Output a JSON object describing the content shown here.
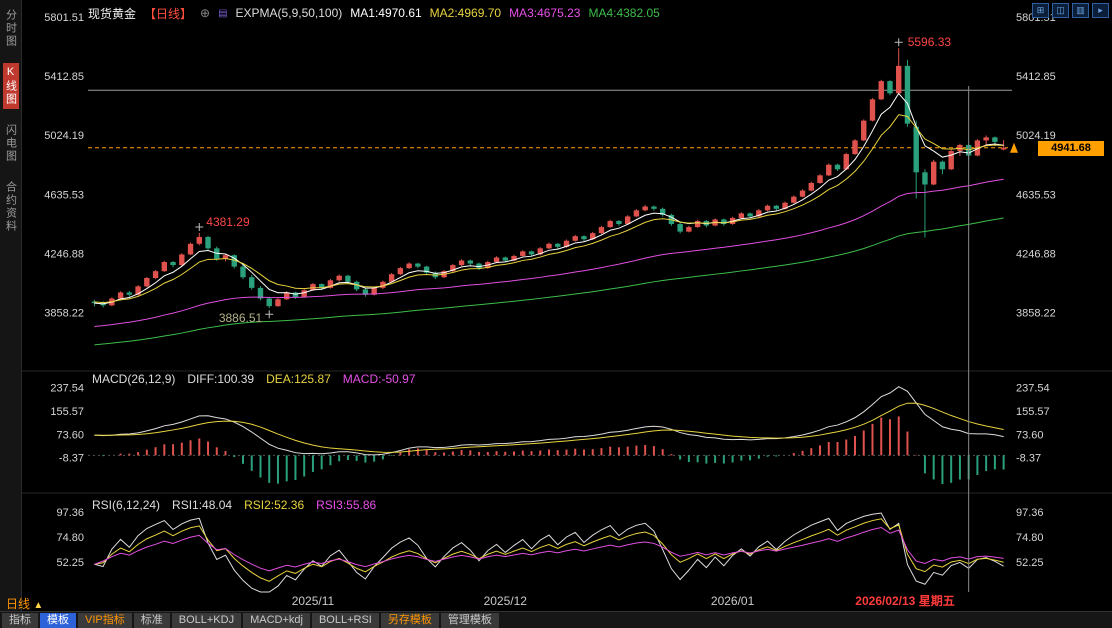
{
  "header": {
    "symbol": "现货黄金",
    "period": "【日线】",
    "add_icon": "⊕",
    "menu_icon": "▤",
    "indicator": "EXPMA(5,9,50,100)",
    "ma1": "MA1:4970.61",
    "ma2": "MA2:4969.70",
    "ma3": "MA3:4675.23",
    "ma4": "MA4:4382.05",
    "icons": [
      {
        "name": "grid-layout-icon",
        "glyph": "⊞"
      },
      {
        "name": "dual-panel-icon",
        "glyph": "◫"
      },
      {
        "name": "list-panel-icon",
        "glyph": "▥"
      },
      {
        "name": "next-page-icon",
        "glyph": "▸"
      }
    ]
  },
  "sidebar": {
    "items": [
      {
        "label": "分时图",
        "active": false
      },
      {
        "label": "K线图",
        "active": true
      },
      {
        "label": "闪电图",
        "active": false
      },
      {
        "label": "合约资料",
        "active": false
      }
    ]
  },
  "macd_header": {
    "title": "MACD(26,12,9)",
    "diff": "DIFF:100.39",
    "dea": "DEA:125.87",
    "macd": "MACD:-50.97"
  },
  "rsi_header": {
    "title": "RSI(6,12,24)",
    "rsi1": "RSI1:48.04",
    "rsi2": "RSI2:52.36",
    "rsi3": "RSI3:55.86"
  },
  "bottom": {
    "period_label": "日线",
    "period_arrow": "▲",
    "tabs": [
      {
        "label": "指标"
      },
      {
        "label": "模板"
      },
      {
        "label": "VIP指标"
      },
      {
        "label": "标准"
      },
      {
        "label": "BOLL+KDJ"
      },
      {
        "label": "MACD+kdj"
      },
      {
        "label": "BOLL+RSI"
      },
      {
        "label": "另存模板"
      },
      {
        "label": "管理模板"
      }
    ]
  },
  "chart_data": {
    "type": "candlestick",
    "title": "现货黄金 日线",
    "y_axis_labels": [
      5801.51,
      5412.85,
      5024.19,
      4635.53,
      4246.88,
      3858.22
    ],
    "price_range": {
      "max": 5801.51,
      "min": 3480
    },
    "x_labels": [
      {
        "index": 25,
        "text": "2025/11"
      },
      {
        "index": 47,
        "text": "2025/12"
      },
      {
        "index": 73,
        "text": "2026/01"
      }
    ],
    "crosshair": {
      "index": 100,
      "date_label": "2026/02/13 星期五"
    },
    "current_price": {
      "value": 4941.68,
      "label": "4941.68"
    },
    "ref_line_price": 5320,
    "annotations": {
      "high": {
        "index": 92,
        "price": 5596.33,
        "text": "5596.33"
      },
      "local_high": {
        "index": 12,
        "price": 4381.29,
        "text": "4381.29"
      },
      "local_low": {
        "index": 20,
        "price": 3886.51,
        "text": "3886.51"
      }
    },
    "expma": {
      "label": "EXPMA(5,9,50,100)",
      "periods": [
        5,
        9,
        50,
        100
      ],
      "seeds": [
        3920,
        3930,
        3760,
        3640
      ],
      "colors": [
        "#ffffff",
        "#e8d33f",
        "#e04fe0",
        "#3dbd4a"
      ],
      "values": [
        4970.61,
        4969.7,
        4675.23,
        4382.05
      ]
    },
    "macd": {
      "label": "MACD(26,12,9)",
      "diff": 100.39,
      "dea": 125.87,
      "macd": -50.97,
      "y_labels": [
        237.54,
        155.57,
        73.6,
        -8.37
      ],
      "range": {
        "min": -100,
        "max": 270
      },
      "seeds": [
        3850,
        3780
      ]
    },
    "rsi": {
      "label": "RSI(6,12,24)",
      "rsi1": 48.04,
      "rsi2": 52.36,
      "rsi3": 55.86,
      "y_labels": [
        97.36,
        74.8,
        52.25
      ],
      "range": {
        "min": 25,
        "max": 108
      }
    },
    "colors": {
      "up": "#e0524d",
      "down": "#2aa07c",
      "current_price": "#ff9f00",
      "crosshair": "#8a8a8a",
      "annotation_red": "#ff4545",
      "axis_text": "#d5d5d5"
    },
    "candles": [
      [
        3930,
        3942,
        3898,
        3920
      ],
      [
        3920,
        3932,
        3892,
        3905
      ],
      [
        3905,
        3958,
        3900,
        3950
      ],
      [
        3950,
        3998,
        3944,
        3990
      ],
      [
        3990,
        3999,
        3962,
        3975
      ],
      [
        3975,
        4038,
        3970,
        4030
      ],
      [
        4030,
        4092,
        4024,
        4085
      ],
      [
        4085,
        4138,
        4078,
        4130
      ],
      [
        4130,
        4198,
        4125,
        4190
      ],
      [
        4190,
        4196,
        4155,
        4170
      ],
      [
        4170,
        4248,
        4165,
        4240
      ],
      [
        4240,
        4318,
        4235,
        4310
      ],
      [
        4310,
        4381.29,
        4300,
        4355
      ],
      [
        4355,
        4362,
        4268,
        4280
      ],
      [
        4280,
        4292,
        4198,
        4210
      ],
      [
        4210,
        4245,
        4195,
        4235
      ],
      [
        4235,
        4240,
        4148,
        4160
      ],
      [
        4160,
        4172,
        4078,
        4090
      ],
      [
        4090,
        4105,
        4008,
        4020
      ],
      [
        4020,
        4032,
        3938,
        3950
      ],
      [
        3950,
        3962,
        3886.51,
        3900
      ],
      [
        3900,
        3952,
        3895,
        3945
      ],
      [
        3945,
        3998,
        3940,
        3990
      ],
      [
        3990,
        3995,
        3948,
        3960
      ],
      [
        3960,
        4012,
        3955,
        4005
      ],
      [
        4005,
        4052,
        4000,
        4045
      ],
      [
        4045,
        4050,
        4008,
        4020
      ],
      [
        4020,
        4078,
        4015,
        4070
      ],
      [
        4070,
        4108,
        4062,
        4100
      ],
      [
        4100,
        4106,
        4048,
        4060
      ],
      [
        4060,
        4068,
        3998,
        4010
      ],
      [
        4010,
        4022,
        3962,
        3975
      ],
      [
        3975,
        4028,
        3970,
        4020
      ],
      [
        4020,
        4068,
        4012,
        4060
      ],
      [
        4060,
        4118,
        4055,
        4110
      ],
      [
        4110,
        4158,
        4104,
        4150
      ],
      [
        4150,
        4188,
        4144,
        4180
      ],
      [
        4180,
        4185,
        4148,
        4160
      ],
      [
        4160,
        4166,
        4108,
        4120
      ],
      [
        4120,
        4128,
        4078,
        4090
      ],
      [
        4090,
        4138,
        4085,
        4130
      ],
      [
        4130,
        4178,
        4125,
        4170
      ],
      [
        4170,
        4208,
        4164,
        4200
      ],
      [
        4200,
        4206,
        4168,
        4180
      ],
      [
        4180,
        4186,
        4138,
        4150
      ],
      [
        4150,
        4198,
        4145,
        4190
      ],
      [
        4190,
        4228,
        4185,
        4220
      ],
      [
        4220,
        4226,
        4188,
        4200
      ],
      [
        4200,
        4238,
        4195,
        4230
      ],
      [
        4230,
        4268,
        4225,
        4260
      ],
      [
        4260,
        4265,
        4228,
        4240
      ],
      [
        4240,
        4288,
        4235,
        4280
      ],
      [
        4280,
        4318,
        4275,
        4310
      ],
      [
        4310,
        4315,
        4278,
        4290
      ],
      [
        4290,
        4338,
        4285,
        4330
      ],
      [
        4330,
        4368,
        4325,
        4360
      ],
      [
        4360,
        4366,
        4328,
        4340
      ],
      [
        4340,
        4388,
        4335,
        4380
      ],
      [
        4380,
        4428,
        4375,
        4420
      ],
      [
        4420,
        4468,
        4415,
        4460
      ],
      [
        4460,
        4466,
        4428,
        4440
      ],
      [
        4440,
        4498,
        4435,
        4490
      ],
      [
        4490,
        4538,
        4485,
        4530
      ],
      [
        4530,
        4565,
        4524,
        4555
      ],
      [
        4555,
        4562,
        4528,
        4540
      ],
      [
        4540,
        4548,
        4488,
        4500
      ],
      [
        4500,
        4508,
        4428,
        4440
      ],
      [
        4440,
        4452,
        4378,
        4390
      ],
      [
        4390,
        4428,
        4385,
        4420
      ],
      [
        4420,
        4468,
        4415,
        4460
      ],
      [
        4460,
        4466,
        4418,
        4430
      ],
      [
        4430,
        4478,
        4425,
        4470
      ],
      [
        4470,
        4476,
        4428,
        4440
      ],
      [
        4440,
        4488,
        4435,
        4480
      ],
      [
        4480,
        4518,
        4475,
        4510
      ],
      [
        4510,
        4516,
        4478,
        4490
      ],
      [
        4490,
        4538,
        4485,
        4530
      ],
      [
        4530,
        4568,
        4525,
        4560
      ],
      [
        4560,
        4566,
        4528,
        4540
      ],
      [
        4540,
        4588,
        4535,
        4580
      ],
      [
        4580,
        4628,
        4575,
        4620
      ],
      [
        4620,
        4668,
        4615,
        4660
      ],
      [
        4660,
        4718,
        4655,
        4710
      ],
      [
        4710,
        4768,
        4705,
        4760
      ],
      [
        4760,
        4838,
        4755,
        4830
      ],
      [
        4830,
        4836,
        4788,
        4800
      ],
      [
        4800,
        4908,
        4795,
        4900
      ],
      [
        4900,
        4998,
        4895,
        4990
      ],
      [
        4990,
        5128,
        4985,
        5120
      ],
      [
        5120,
        5268,
        5115,
        5260
      ],
      [
        5260,
        5388,
        5255,
        5380
      ],
      [
        5380,
        5386,
        5288,
        5300
      ],
      [
        5300,
        5596.33,
        5295,
        5480
      ],
      [
        5480,
        5520,
        5080,
        5100
      ],
      [
        5080,
        5120,
        4608,
        4780
      ],
      [
        4780,
        4800,
        4352,
        4700
      ],
      [
        4700,
        4862,
        4695,
        4850
      ],
      [
        4850,
        4858,
        4768,
        4800
      ],
      [
        4800,
        4928,
        4795,
        4920
      ],
      [
        4920,
        4968,
        4888,
        4960
      ],
      [
        4960,
        4966,
        4858,
        4890
      ],
      [
        4890,
        4998,
        4885,
        4990
      ],
      [
        4990,
        5022,
        4958,
        5010
      ],
      [
        5010,
        5016,
        4952,
        4980
      ],
      [
        4930,
        4992,
        4925,
        4941.68
      ]
    ]
  }
}
